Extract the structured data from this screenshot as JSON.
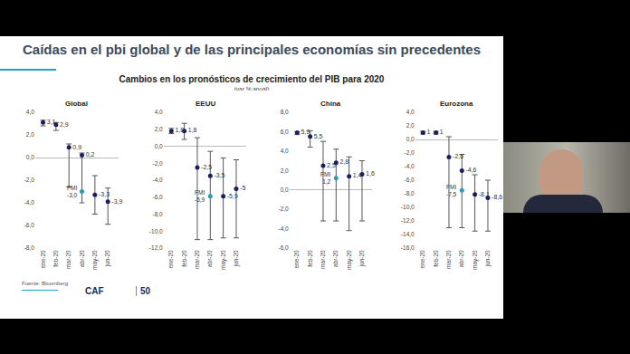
{
  "slide": {
    "title": "Caídas en el pbi global y de las principales economías sin precedentes",
    "subtitle": "Cambios en los pronósticos de crecimiento del PIB para 2020",
    "unit_note": "(var % anual)",
    "source": "Fuente: Bloomberg",
    "logo": "CAF",
    "anniversary": "50"
  },
  "chart_data": [
    {
      "type": "scatter",
      "title": "Global",
      "categories": [
        "ene-20",
        "feb-20",
        "mar-20",
        "abr-20",
        "may-20",
        "jun-20"
      ],
      "ylim": [
        -8,
        4
      ],
      "yticks": [
        {
          "value": -8,
          "label": "-8,0"
        },
        {
          "value": -6,
          "label": "-6,0"
        },
        {
          "value": -4,
          "label": "-4,0"
        },
        {
          "value": -2,
          "label": "-2,0"
        },
        {
          "value": 0,
          "label": "0,0"
        },
        {
          "value": 2,
          "label": "2,0"
        },
        {
          "value": 4,
          "label": "4,0"
        }
      ],
      "grid": false,
      "data_labels": true,
      "series": [
        {
          "color": "#1b1f5e",
          "marker": "circle",
          "values": [
            3.1,
            2.9,
            0.9,
            0.2,
            -3.3,
            -3.9
          ],
          "value_labels": [
            "3,1",
            "2,9",
            "0,9",
            "0,2",
            "-3,3",
            "-3,9"
          ],
          "low": [
            2.8,
            2.4,
            -2.6,
            -4.0,
            -5.0,
            -5.9
          ],
          "high": [
            3.3,
            3.1,
            1.2,
            0.4,
            -1.6,
            -2.7
          ]
        },
        {
          "name": "FMI",
          "color": "#2a9bb5",
          "marker": "circle",
          "values": [
            null,
            null,
            null,
            -3.0,
            null,
            null
          ],
          "value_labels": [
            null,
            null,
            null,
            "-3,0",
            null,
            null
          ]
        }
      ]
    },
    {
      "type": "scatter",
      "title": "EEUU",
      "categories": [
        "ene-20",
        "feb-20",
        "mar-20",
        "abr-20",
        "may-20",
        "jun-20"
      ],
      "ylim": [
        -12,
        4
      ],
      "yticks": [
        {
          "value": -12,
          "label": "-12,0"
        },
        {
          "value": -10,
          "label": "-10,0"
        },
        {
          "value": -8,
          "label": "-8,0"
        },
        {
          "value": -6,
          "label": "-6,0"
        },
        {
          "value": -4,
          "label": "-4,0"
        },
        {
          "value": -2,
          "label": "-2,0"
        },
        {
          "value": 0,
          "label": "0,0"
        },
        {
          "value": 2,
          "label": "2,0"
        },
        {
          "value": 4,
          "label": "4,0"
        }
      ],
      "grid": false,
      "data_labels": true,
      "series": [
        {
          "color": "#1b1f5e",
          "marker": "circle",
          "values": [
            1.8,
            1.8,
            -2.5,
            -3.5,
            -5.9,
            -5
          ],
          "value_labels": [
            "1,8",
            "1,8",
            "-2,5",
            "-3,5",
            "-5,9",
            "-5"
          ],
          "low": [
            1.5,
            0.8,
            -11.0,
            -11.0,
            -10.8,
            -10.8
          ],
          "high": [
            2.1,
            2.7,
            1.0,
            -0.6,
            -1.4,
            -1.6
          ]
        },
        {
          "name": "FMI",
          "color": "#2a9bb5",
          "marker": "circle",
          "values": [
            null,
            null,
            null,
            -5.9,
            null,
            null
          ],
          "value_labels": [
            null,
            null,
            null,
            "-5,9",
            null,
            null
          ]
        }
      ]
    },
    {
      "type": "scatter",
      "title": "China",
      "categories": [
        "ene-20",
        "feb-20",
        "mar-20",
        "abr-20",
        "may-20",
        "jun-20"
      ],
      "ylim": [
        -6,
        8
      ],
      "yticks": [
        {
          "value": -6,
          "label": "-6,0"
        },
        {
          "value": -4,
          "label": "-4,0"
        },
        {
          "value": -2,
          "label": "-2,0"
        },
        {
          "value": 0,
          "label": "0,0"
        },
        {
          "value": 2,
          "label": "2,0"
        },
        {
          "value": 4,
          "label": "4,0"
        },
        {
          "value": 6,
          "label": "6,0"
        },
        {
          "value": 8,
          "label": "8,0"
        }
      ],
      "grid": false,
      "data_labels": true,
      "series": [
        {
          "color": "#1b1f5e",
          "marker": "circle",
          "values": [
            5.9,
            5.5,
            2.5,
            2.8,
            1.4,
            1.6
          ],
          "value_labels": [
            "5,9",
            "5,5",
            "2,5",
            "2,8",
            "1,4",
            "1,6"
          ],
          "low": [
            5.7,
            4.4,
            -3.2,
            -3.2,
            -4.2,
            -3.2
          ],
          "high": [
            6.0,
            6.1,
            5.0,
            4.2,
            3.4,
            3.0
          ]
        },
        {
          "name": "FMI",
          "color": "#2a9bb5",
          "marker": "circle",
          "values": [
            null,
            null,
            null,
            1.2,
            null,
            null
          ],
          "value_labels": [
            null,
            null,
            null,
            "1,2",
            null,
            null
          ]
        }
      ]
    },
    {
      "type": "scatter",
      "title": "Eurozona",
      "categories": [
        "ene-20",
        "feb-20",
        "mar-20",
        "abr-20",
        "may-20",
        "jun-20"
      ],
      "ylim": [
        -16,
        4
      ],
      "yticks": [
        {
          "value": -16,
          "label": "-16,0"
        },
        {
          "value": -14,
          "label": "-14,0"
        },
        {
          "value": -12,
          "label": "-12,0"
        },
        {
          "value": -10,
          "label": "-10,0"
        },
        {
          "value": -8,
          "label": "-8,0"
        },
        {
          "value": -6,
          "label": "-6,0"
        },
        {
          "value": -4,
          "label": "-4,0"
        },
        {
          "value": -2,
          "label": "-2,0"
        },
        {
          "value": 0,
          "label": "0,0"
        },
        {
          "value": 2,
          "label": "2,0"
        },
        {
          "value": 4,
          "label": "4,0"
        }
      ],
      "grid": false,
      "data_labels": true,
      "series": [
        {
          "color": "#1b1f5e",
          "marker": "circle",
          "values": [
            1,
            1,
            -2.6,
            -4.6,
            -8.1,
            -8.6
          ],
          "value_labels": [
            "1",
            "1",
            "-2,6",
            "-4,6",
            "-8,1",
            "-8,6"
          ],
          "low": [
            0.8,
            0.8,
            -13.0,
            -13.0,
            -13.5,
            -13.5
          ],
          "high": [
            1.2,
            1.2,
            0.4,
            -2.2,
            -5.2,
            -6.0
          ]
        },
        {
          "name": "FMI",
          "color": "#2a9bb5",
          "marker": "circle",
          "values": [
            null,
            null,
            null,
            -7.5,
            null,
            null
          ],
          "value_labels": [
            null,
            null,
            null,
            "-7,5",
            null,
            null
          ]
        }
      ]
    }
  ]
}
